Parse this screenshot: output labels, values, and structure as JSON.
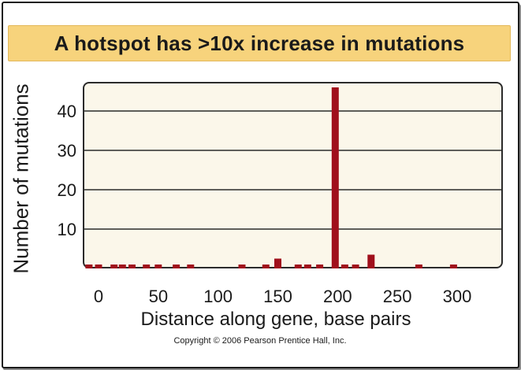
{
  "chart_data": {
    "type": "bar",
    "title": "A hotspot has >10x increase in mutations",
    "xlabel": "Distance along gene, base pairs",
    "ylabel": "Number of mutations",
    "xlim": [
      -12,
      336
    ],
    "ylim": [
      0,
      45
    ],
    "x_ticks": [
      0,
      50,
      100,
      150,
      200,
      250,
      300
    ],
    "y_ticks": [
      10,
      20,
      30,
      40
    ],
    "grid": true,
    "bar_color": "#a0101c",
    "x": [
      -8,
      0,
      13,
      20,
      28,
      40,
      50,
      65,
      77,
      120,
      140,
      150,
      167,
      175,
      185,
      198,
      206,
      215,
      228,
      268,
      297
    ],
    "values": [
      1,
      1,
      1,
      1,
      1,
      1,
      1,
      1,
      1,
      1,
      1,
      2.5,
      1,
      1,
      1,
      46,
      1,
      1,
      3.5,
      1,
      1
    ]
  },
  "copyright": "Copyright © 2006 Pearson Prentice Hall, Inc."
}
